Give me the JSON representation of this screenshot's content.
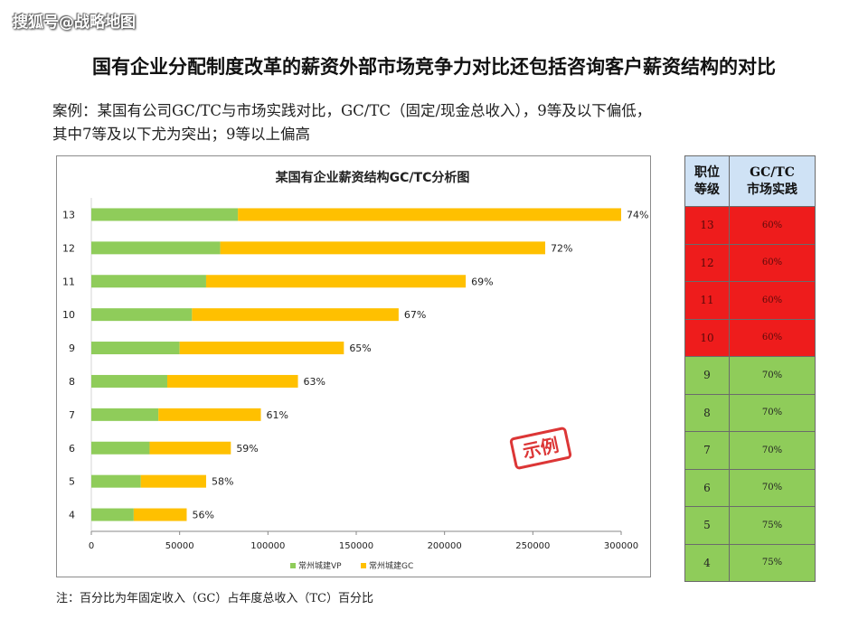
{
  "watermark": "搜狐号@战略地图",
  "main_title": "国有企业分配制度改革的薪资外部市场竞争力对比还包括咨询客户薪资结构的对比",
  "case_lines": [
    "案例：某国有公司GC/TC与市场实践对比，GC/TC（固定/现金总收入），9等及以下偏低，",
    "其中7等及以下尤为突出；9等以上偏高"
  ],
  "stamp_text": "示例",
  "footnote": "注：百分比为年固定收入（GC）占年度总收入（TC）百分比",
  "colors": {
    "vp": "#8fcc5a",
    "gc": "#ffc000",
    "red": "#ee1c1c",
    "green": "#8fcc5a",
    "header": "#cfe2f5"
  },
  "chart_data": {
    "type": "bar",
    "orientation": "horizontal",
    "stacked": true,
    "title": "某国有企业薪资结构GC/TC分析图",
    "categories": [
      "13",
      "12",
      "11",
      "10",
      "9",
      "8",
      "7",
      "6",
      "5",
      "4"
    ],
    "series": [
      {
        "name": "常州城建VP",
        "values": [
          83000,
          73000,
          65000,
          57000,
          50000,
          43000,
          38000,
          33000,
          28000,
          24000
        ]
      },
      {
        "name": "常州城建GC",
        "values": [
          217000,
          184000,
          147000,
          117000,
          93000,
          74000,
          58000,
          46000,
          37000,
          30000
        ]
      }
    ],
    "data_labels": [
      "74%",
      "72%",
      "69%",
      "67%",
      "65%",
      "63%",
      "61%",
      "59%",
      "58%",
      "56%"
    ],
    "xlim": [
      0,
      300000
    ],
    "xticks": [
      "0",
      "50000",
      "100000",
      "150000",
      "200000",
      "250000",
      "300000"
    ],
    "xlabel": "",
    "ylabel": "",
    "grid": false,
    "legend_position": "bottom"
  },
  "table": {
    "header_grade": [
      "职位",
      "等级"
    ],
    "header_market": [
      "GC/TC",
      "市场实践"
    ],
    "rows": [
      {
        "grade": "13",
        "market": "60%",
        "status": "red"
      },
      {
        "grade": "12",
        "market": "60%",
        "status": "red"
      },
      {
        "grade": "11",
        "market": "60%",
        "status": "red"
      },
      {
        "grade": "10",
        "market": "60%",
        "status": "red"
      },
      {
        "grade": "9",
        "market": "70%",
        "status": "green"
      },
      {
        "grade": "8",
        "market": "70%",
        "status": "green"
      },
      {
        "grade": "7",
        "market": "70%",
        "status": "green"
      },
      {
        "grade": "6",
        "market": "70%",
        "status": "green"
      },
      {
        "grade": "5",
        "market": "75%",
        "status": "green"
      },
      {
        "grade": "4",
        "market": "75%",
        "status": "green"
      }
    ]
  }
}
